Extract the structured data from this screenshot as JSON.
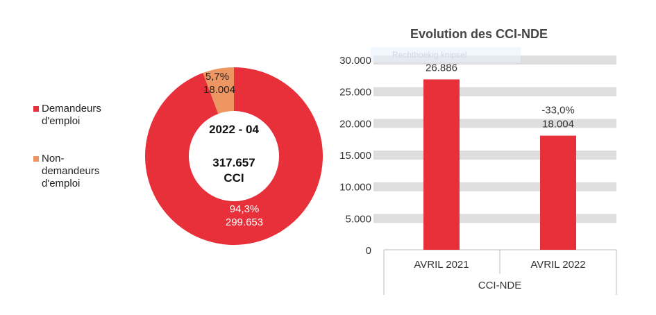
{
  "chart_data": [
    {
      "type": "pie",
      "donut": true,
      "center_label": {
        "period": "2022 - 04",
        "total": "317.657",
        "unit": "CCI"
      },
      "slices": [
        {
          "name": "Demandeurs d'emploi",
          "percent_label": "94,3%",
          "value_label": "299.653",
          "value": 299653,
          "color": "#E8303A"
        },
        {
          "name": "Non-demandeurs d'emploi",
          "percent_label": "5,7%",
          "value_label": "18.004",
          "value": 18004,
          "color": "#EE9661"
        }
      ],
      "legend": {
        "placement": "left",
        "entries": [
          "Demandeurs d'emploi",
          "Non-demandeurs d'emploi"
        ]
      }
    },
    {
      "type": "bar",
      "title": "Evolution des CCI-NDE",
      "categories": [
        "AVRIL 2021",
        "AVRIL 2022"
      ],
      "group_label": "CCI-NDE",
      "values": [
        26886,
        18004
      ],
      "data_labels": [
        "26.886",
        "18.004"
      ],
      "change_labels": [
        "",
        "-33,0%"
      ],
      "color": "#E8303A",
      "ylim": [
        0,
        30000
      ],
      "yticks": [
        {
          "v": 0,
          "label": "0"
        },
        {
          "v": 5000,
          "label": "5.000"
        },
        {
          "v": 10000,
          "label": "10.000"
        },
        {
          "v": 15000,
          "label": "15.000"
        },
        {
          "v": 20000,
          "label": "20.000"
        },
        {
          "v": 25000,
          "label": "25.000"
        },
        {
          "v": 30000,
          "label": "30.000"
        }
      ],
      "grid": true
    }
  ],
  "overlay": {
    "tooltip": "Rechthoekig knipsel"
  }
}
